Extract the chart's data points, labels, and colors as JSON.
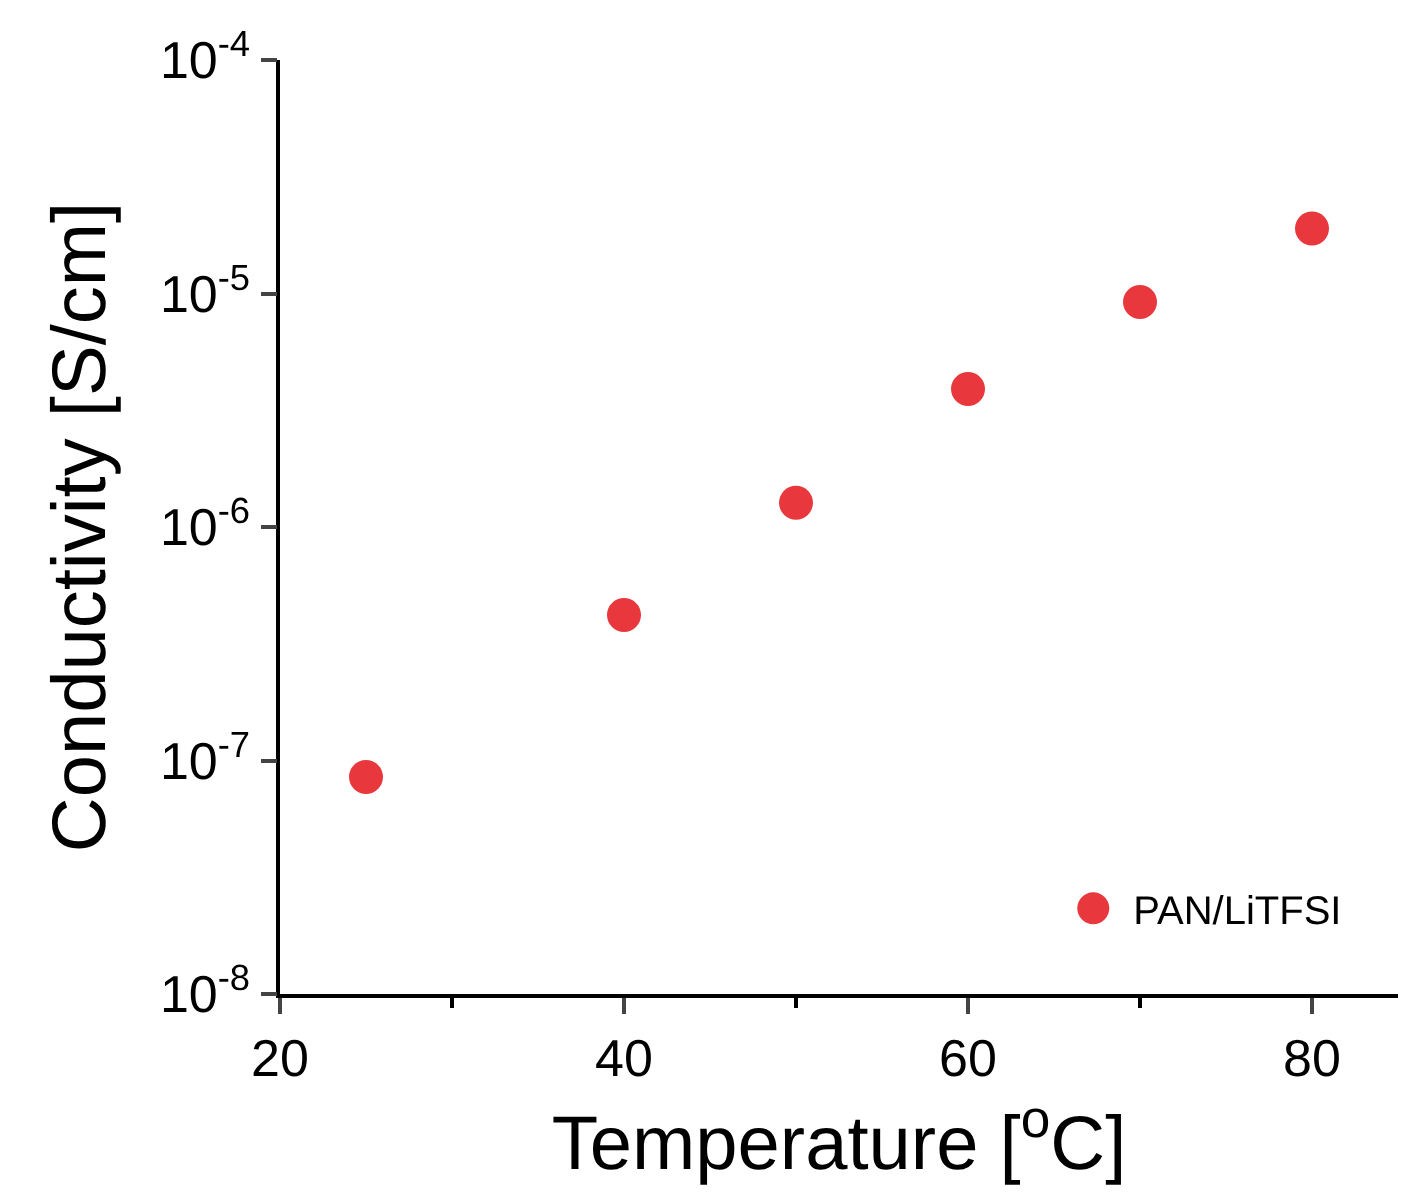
{
  "chart_data": {
    "type": "scatter",
    "xlabel": "Temperature [$^{o}$C]",
    "ylabel": "Conductivity [S/cm]",
    "x": [
      25,
      40,
      50,
      60,
      70,
      80
    ],
    "series": [
      {
        "name": "PAN/LiTFSI",
        "color": "#e8383d",
        "values": [
          8.5e-08,
          4.2e-07,
          1.27e-06,
          3.9e-06,
          9.2e-06,
          1.9e-05
        ]
      }
    ],
    "xlim": [
      20,
      85
    ],
    "xticks": [
      20,
      40,
      60,
      80
    ],
    "ylim": [
      1e-08,
      0.0001
    ],
    "yticks": [
      {
        "value": 1e-08,
        "label": "10$^{-8}$"
      },
      {
        "value": 1e-07,
        "label": "10$^{-7}$"
      },
      {
        "value": 1e-06,
        "label": "10$^{-6}$"
      },
      {
        "value": 1e-05,
        "label": "10$^{-5}$"
      },
      {
        "value": 0.0001,
        "label": "10$^{-4}$"
      }
    ],
    "log": "y",
    "legend": "bottom right",
    "marker": "circle"
  }
}
